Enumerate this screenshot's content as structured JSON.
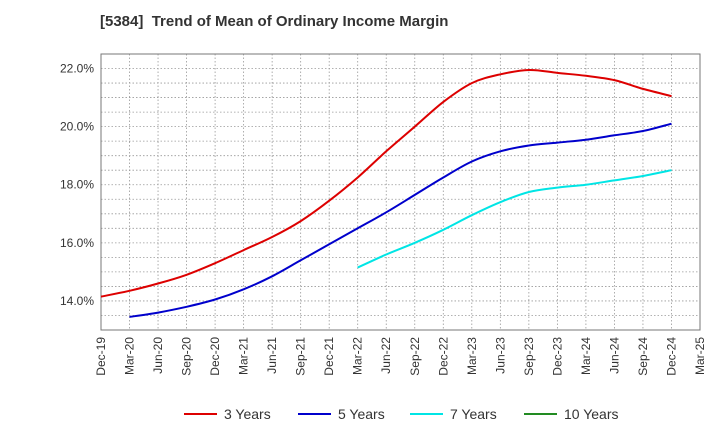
{
  "chart_data": {
    "type": "line",
    "title": "[5384]  Trend of Mean of Ordinary Income Margin",
    "xlabel": "",
    "ylabel": "",
    "ylim": [
      13.0,
      22.5
    ],
    "y_ticks": [
      14.0,
      16.0,
      18.0,
      20.0,
      22.0
    ],
    "y_tick_labels": [
      "14.0%",
      "16.0%",
      "18.0%",
      "20.0%",
      "22.0%"
    ],
    "categories": [
      "Dec-19",
      "Mar-20",
      "Jun-20",
      "Sep-20",
      "Dec-20",
      "Mar-21",
      "Jun-21",
      "Sep-21",
      "Dec-21",
      "Mar-22",
      "Jun-22",
      "Sep-22",
      "Dec-22",
      "Mar-23",
      "Jun-23",
      "Sep-23",
      "Dec-23",
      "Mar-24",
      "Jun-24",
      "Sep-24",
      "Dec-24",
      "Mar-25"
    ],
    "grid": true,
    "legend_position": "bottom",
    "series": [
      {
        "name": "3 Years",
        "color": "#dd0000",
        "values": [
          14.15,
          14.35,
          14.6,
          14.9,
          15.3,
          15.75,
          16.2,
          16.75,
          17.45,
          18.25,
          19.15,
          20.0,
          20.85,
          21.5,
          21.8,
          21.95,
          21.85,
          21.75,
          21.6,
          21.3,
          21.05,
          null
        ]
      },
      {
        "name": "5 Years",
        "color": "#0000cc",
        "values": [
          null,
          13.45,
          13.6,
          13.8,
          14.05,
          14.4,
          14.85,
          15.4,
          15.95,
          16.5,
          17.05,
          17.65,
          18.25,
          18.8,
          19.15,
          19.35,
          19.45,
          19.55,
          19.7,
          19.85,
          20.1,
          null
        ]
      },
      {
        "name": "7 Years",
        "color": "#00e5e5",
        "values": [
          null,
          null,
          null,
          null,
          null,
          null,
          null,
          null,
          null,
          15.15,
          15.6,
          16.0,
          16.45,
          16.95,
          17.4,
          17.75,
          17.9,
          18.0,
          18.15,
          18.3,
          18.5,
          null
        ]
      },
      {
        "name": "10 Years",
        "color": "#228b22",
        "values": [
          null,
          null,
          null,
          null,
          null,
          null,
          null,
          null,
          null,
          null,
          null,
          null,
          null,
          null,
          null,
          null,
          null,
          null,
          null,
          null,
          null,
          null
        ]
      }
    ]
  }
}
